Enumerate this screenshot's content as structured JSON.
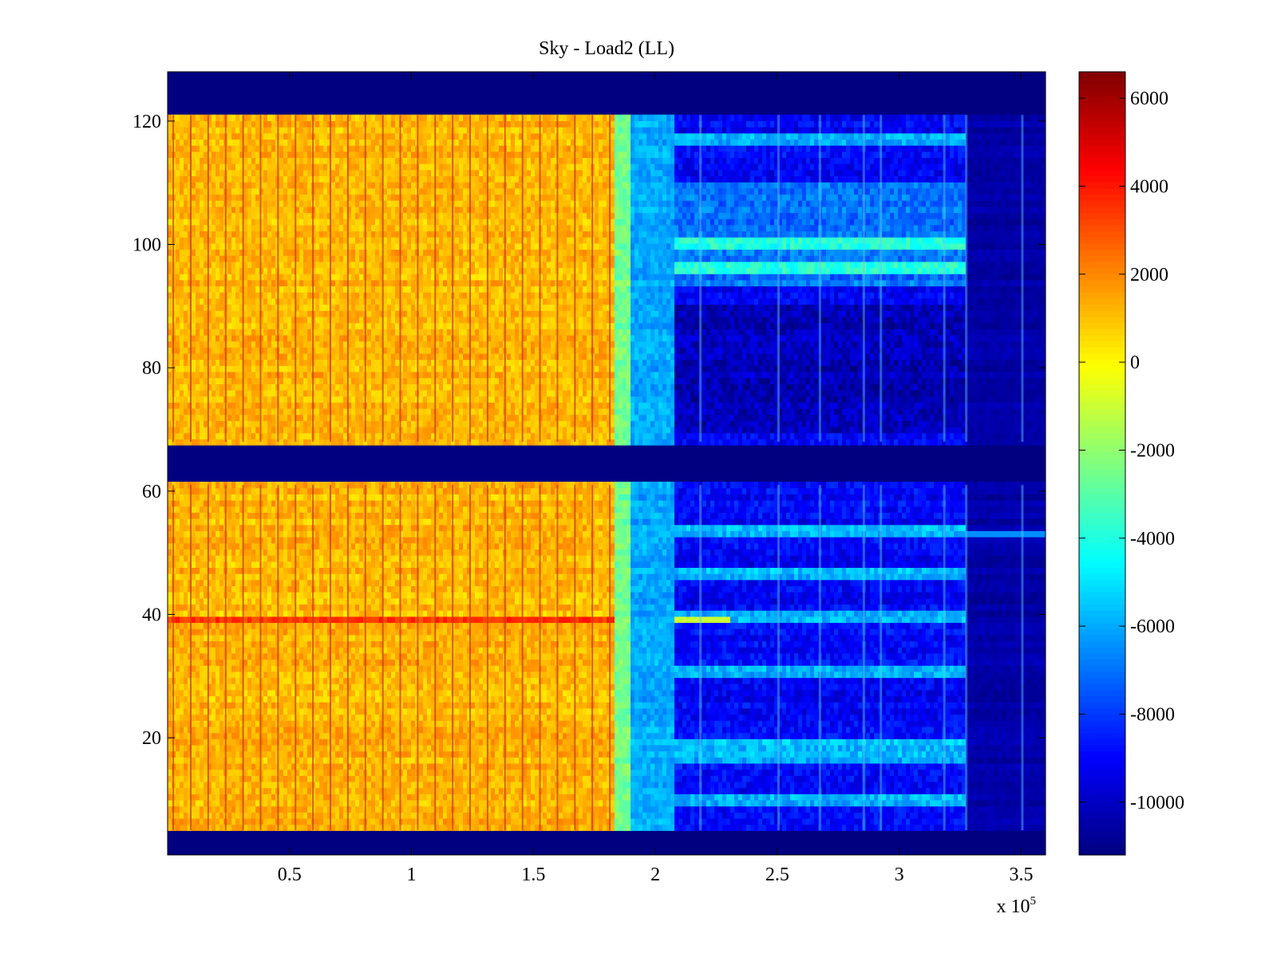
{
  "chart_data": {
    "type": "heatmap",
    "title": "Sky - Load2 (LL)",
    "xlabel": "",
    "ylabel": "",
    "x_multiplier_label": {
      "base": "x 10",
      "exponent": "5"
    },
    "xlim": [
      0,
      3.6
    ],
    "ylim": [
      1,
      128
    ],
    "xticks": [
      0.5,
      1,
      1.5,
      2,
      2.5,
      3,
      3.5
    ],
    "xtick_labels": [
      "0.5",
      "1",
      "1.5",
      "2",
      "2.5",
      "3",
      "3.5"
    ],
    "yticks": [
      20,
      40,
      60,
      80,
      100,
      120
    ],
    "ytick_labels": [
      "20",
      "40",
      "60",
      "80",
      "100",
      "120"
    ],
    "colormap": "jet",
    "clim": [
      -11200,
      6600
    ],
    "colorbar_ticks": [
      6000,
      4000,
      2000,
      0,
      -2000,
      -4000,
      -6000,
      -8000,
      -10000
    ],
    "colorbar_tick_labels": [
      "6000",
      "4000",
      "2000",
      "0",
      "-2000",
      "-4000",
      "-6000",
      "-8000",
      "-10000"
    ],
    "masked_rows": [
      [
        1,
        4
      ],
      [
        62,
        67
      ],
      [
        122,
        128
      ]
    ],
    "regions": [
      {
        "x_range": [
          0,
          1.83
        ],
        "level": 1200,
        "note": "warm band with dark vertical stripes"
      },
      {
        "x_range": [
          1.83,
          1.9
        ],
        "level": -2500,
        "note": "yellow-green transition"
      },
      {
        "x_range": [
          1.9,
          2.08
        ],
        "level": -6000,
        "note": "cyan transition"
      },
      {
        "x_range": [
          2.08,
          3.27
        ],
        "level": -9000,
        "note": "blue with cyan horizontal bands"
      },
      {
        "x_range": [
          3.27,
          3.6
        ],
        "level": -10500,
        "note": "dark blue"
      }
    ],
    "hot_row": {
      "y": 39,
      "x_range": [
        0,
        1.83
      ],
      "level": 3500
    },
    "bright_rows_blue_region": [
      9,
      16,
      18,
      30,
      39,
      46,
      53,
      96,
      100,
      117
    ],
    "grid": false,
    "legend": "colorbar-right"
  }
}
